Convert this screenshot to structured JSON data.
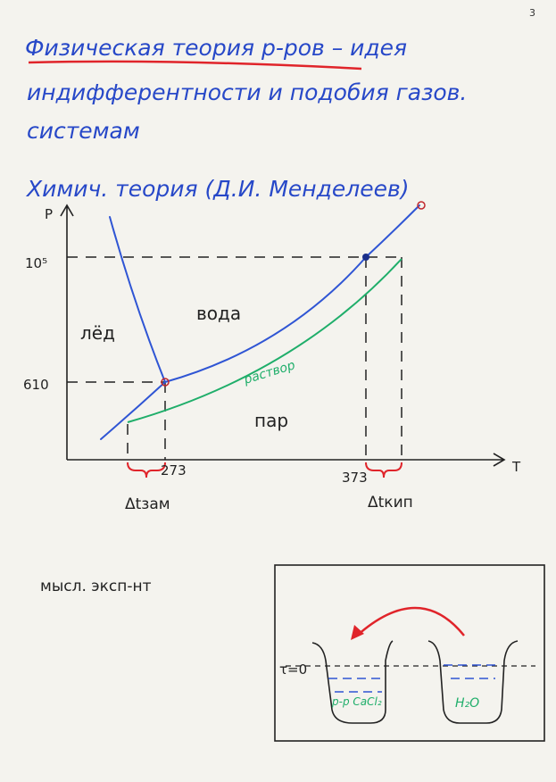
{
  "page_number": "3",
  "lines": [
    "Физическая теория р-ров – идея",
    "индифферентности и подобия газов.",
    "системам",
    "Химич. теория (Д.И. Менделеев)"
  ],
  "diagram": {
    "y_axis": "P",
    "x_axis": "T",
    "p_high": "10⁵",
    "p_low": "610",
    "t_freeze": "273",
    "t_boil": "373",
    "ice": "лёд",
    "water": "вода",
    "vapor": "пар",
    "solution": "раствор",
    "dt_freeze": "Δtзам",
    "dt_boil": "Δtкип"
  },
  "experiment": {
    "title": "мысл. эксп-нт",
    "time": "τ=0",
    "left_beaker": "р-р CaCl₂",
    "right_beaker": "H₂O"
  }
}
